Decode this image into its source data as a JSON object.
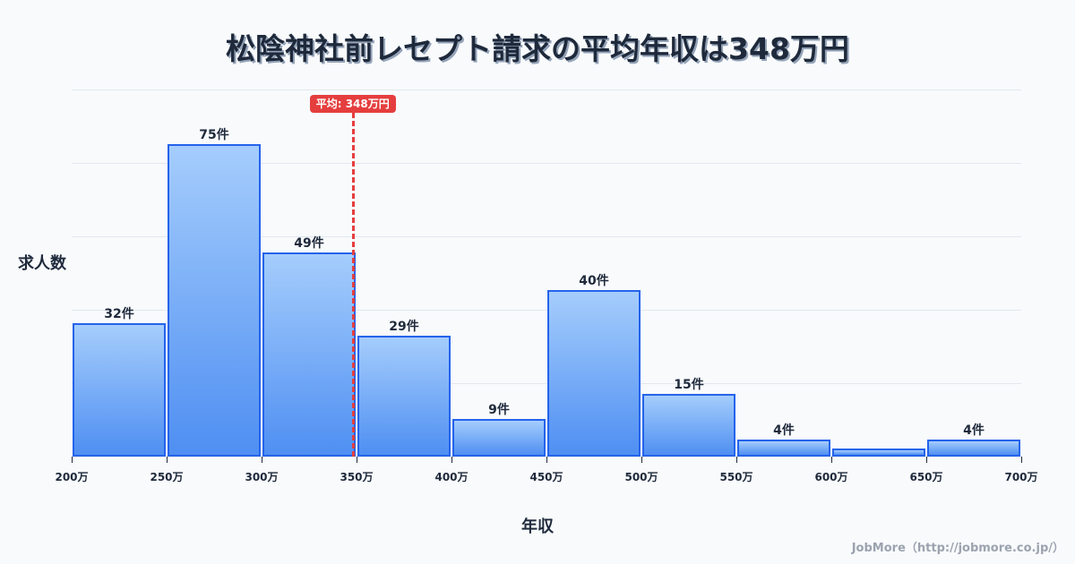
{
  "header": {
    "title": "松陰神社前レセプト請求の平均年収は348万円"
  },
  "chart_data": {
    "type": "bar",
    "title": "松陰神社前レセプト請求の平均年収は348万円",
    "xlabel": "年収",
    "ylabel": "求人数",
    "categories": [
      "200-250万",
      "250-300万",
      "300-350万",
      "350-400万",
      "400-450万",
      "450-500万",
      "500-550万",
      "550-600万",
      "600-650万",
      "650-700万"
    ],
    "values": [
      32,
      75,
      49,
      29,
      9,
      40,
      15,
      4,
      2,
      4
    ],
    "value_labels": [
      "32件",
      "75件",
      "49件",
      "29件",
      "9件",
      "40件",
      "15件",
      "4件",
      "",
      "4件"
    ],
    "x_ticks": [
      "200万",
      "250万",
      "300万",
      "350万",
      "400万",
      "450万",
      "500万",
      "550万",
      "600万",
      "650万",
      "700万"
    ],
    "x_range": [
      200,
      700
    ],
    "ylim": [
      0,
      88
    ],
    "grid": true,
    "gridlines_count": 5,
    "mean": 348,
    "mean_label": "平均: 348万円",
    "legend": null,
    "colors": {
      "bar_top": "#a5cdfc",
      "bar_bottom": "#4f8ff2",
      "bar_border": "#2563eb",
      "mean": "#e53e3e"
    }
  },
  "footer": {
    "credit": "JobMore（http://jobmore.co.jp/）"
  }
}
